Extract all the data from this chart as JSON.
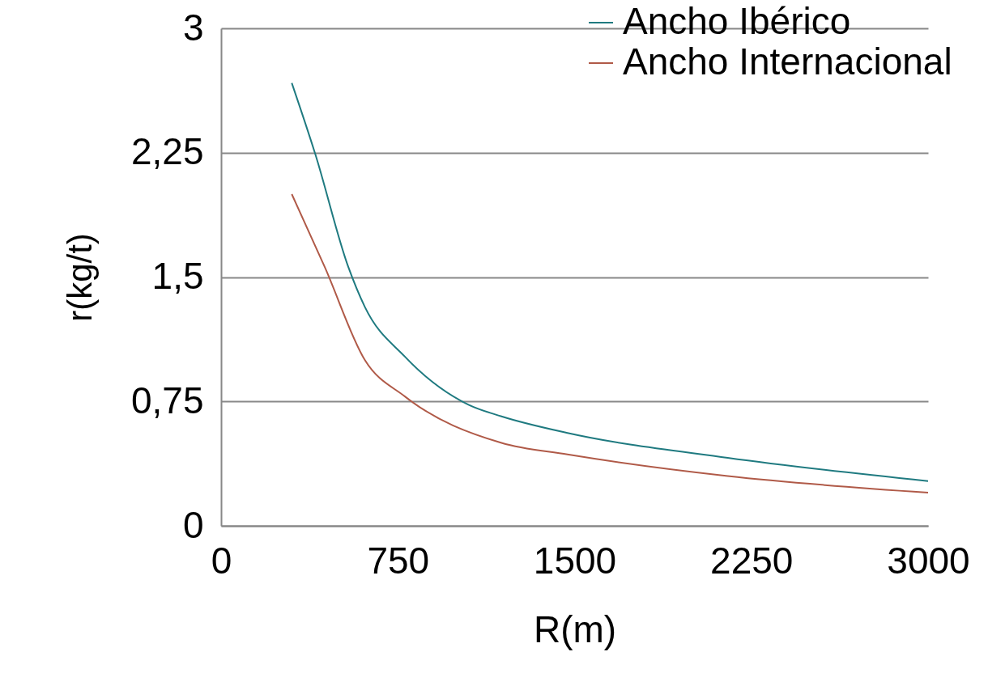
{
  "chart_data": {
    "type": "line",
    "xlabel": "R(m)",
    "ylabel": "r(kg/t)",
    "xlim": [
      0,
      3000
    ],
    "xticks": [
      0,
      750,
      1500,
      2250,
      3000
    ],
    "ylim": [
      0,
      3
    ],
    "yticks": [
      0,
      {
        "value": 0.75,
        "label": "0,75"
      },
      {
        "value": 1.5,
        "label": "1,5"
      },
      {
        "value": 2.25,
        "label": "2,25"
      },
      3
    ],
    "grid": "y",
    "legend": "top right",
    "marker": "none",
    "line_style": "solid",
    "series": [
      {
        "name": "Ancho Ibérico",
        "color": "#1f7a80",
        "x": [
          300,
          400,
          540,
          610,
          780,
          1050,
          1190,
          1470,
          2150,
          3000
        ],
        "values": [
          2.67,
          2.24,
          1.56,
          1.32,
          1.02,
          0.73,
          0.66,
          0.56,
          0.41,
          0.27
        ]
      },
      {
        "name": "Ancho Internacional",
        "color": "#b05a48",
        "x": [
          300,
          440,
          610,
          780,
          1190,
          1470,
          2150,
          3000
        ],
        "values": [
          2.0,
          1.56,
          1.0,
          0.78,
          0.5,
          0.43,
          0.3,
          0.2
        ]
      }
    ]
  }
}
